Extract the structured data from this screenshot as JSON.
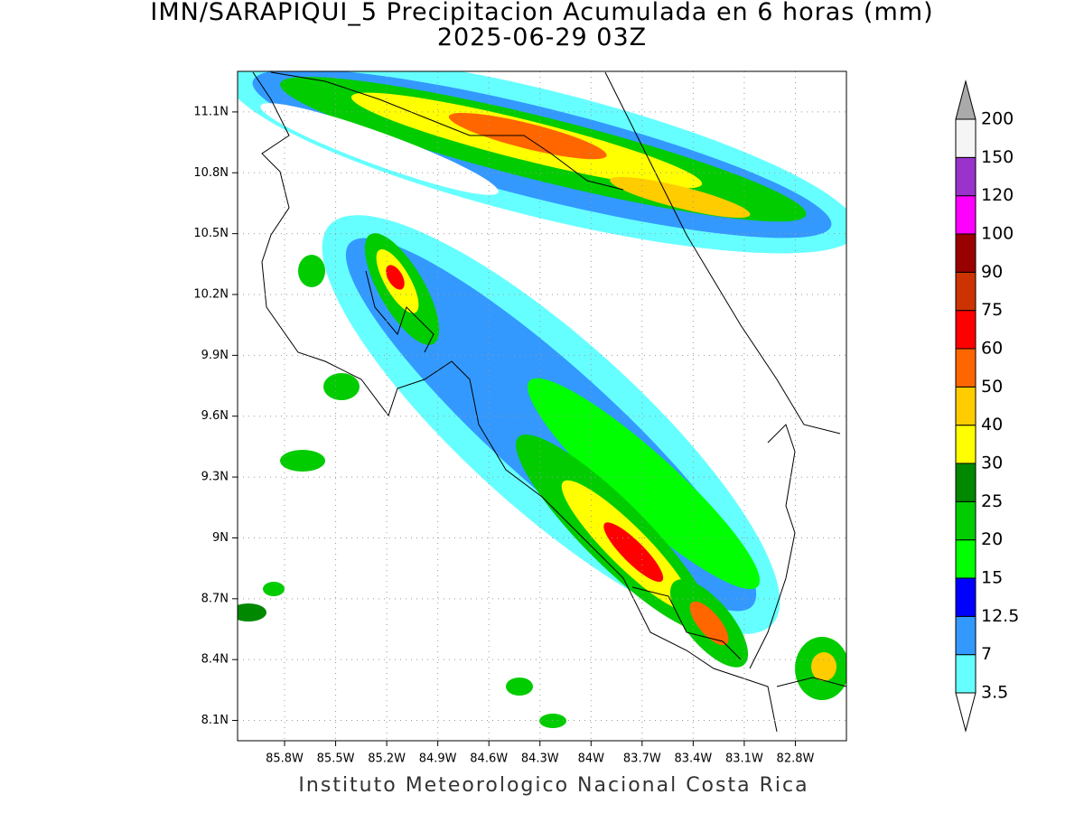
{
  "title": "IMN/SARAPIQUI_5 Precipitacion Acumulada en 6 horas (mm)",
  "subtitle": "2025-06-29 03Z",
  "footer": "Instituto Meteorologico Nacional Costa Rica",
  "map": {
    "lon_range": [
      -86.076,
      -82.5
    ],
    "lat_range": [
      8.0,
      11.3
    ],
    "grid": true,
    "lon_ticks": [
      {
        "value": -85.8,
        "label": "85.8W"
      },
      {
        "value": -85.5,
        "label": "85.5W"
      },
      {
        "value": -85.2,
        "label": "85.2W"
      },
      {
        "value": -84.9,
        "label": "84.9W"
      },
      {
        "value": -84.6,
        "label": "84.6W"
      },
      {
        "value": -84.3,
        "label": "84.3W"
      },
      {
        "value": -84,
        "label": "84W"
      },
      {
        "value": -83.7,
        "label": "83.7W"
      },
      {
        "value": -83.4,
        "label": "83.4W"
      },
      {
        "value": -83.1,
        "label": "83.1W"
      },
      {
        "value": -82.8,
        "label": "82.8W"
      }
    ],
    "lat_ticks": [
      {
        "value": 8.1,
        "label": "8.1N"
      },
      {
        "value": 8.4,
        "label": "8.4N"
      },
      {
        "value": 8.7,
        "label": "8.7N"
      },
      {
        "value": 9,
        "label": "9N"
      },
      {
        "value": 9.3,
        "label": "9.3N"
      },
      {
        "value": 9.6,
        "label": "9.6N"
      },
      {
        "value": 9.9,
        "label": "9.9N"
      },
      {
        "value": 10.2,
        "label": "10.2N"
      },
      {
        "value": 10.5,
        "label": "10.5N"
      },
      {
        "value": 10.8,
        "label": "10.8N"
      },
      {
        "value": 11.1,
        "label": "11.1N"
      }
    ]
  },
  "colorbar": {
    "levels": [
      3.5,
      7,
      12.5,
      15,
      20,
      25,
      30,
      40,
      50,
      60,
      75,
      90,
      100,
      120,
      150,
      200
    ],
    "colors": [
      "#66ffff",
      "#3399ff",
      "#0000ff",
      "#00ff00",
      "#00cc00",
      "#008800",
      "#ffff00",
      "#ffcc00",
      "#ff6600",
      "#ff0000",
      "#cc3300",
      "#990000",
      "#ff00ff",
      "#9933cc",
      "#f5f5f5"
    ],
    "under_color": "#ffffff",
    "over_color": "#aaaaaa"
  }
}
